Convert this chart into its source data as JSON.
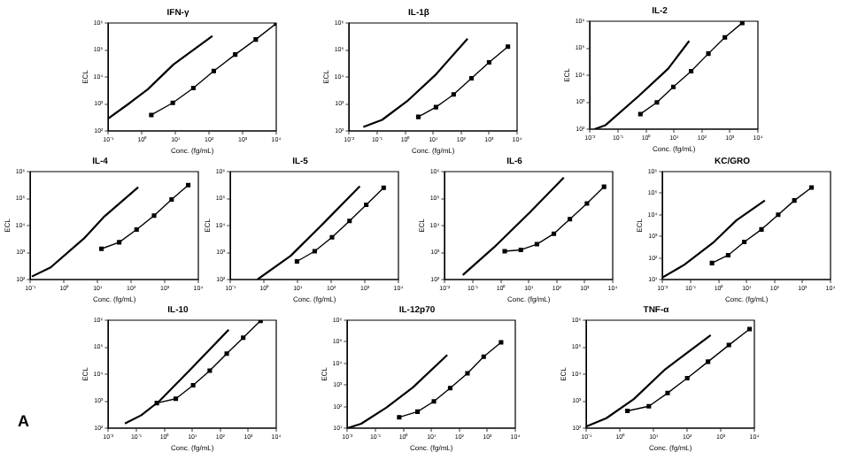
{
  "chart_data": [
    {
      "type": "line",
      "title": "IFN-γ",
      "xlabel": "Conc. (fg/mL)",
      "ylabel": "ECL",
      "log": "xy",
      "grid": false,
      "legend": false,
      "xlim": [
        0.1,
        10000
      ],
      "ylim": [
        100,
        1000000
      ],
      "xticks": [
        {
          "value": 0.1,
          "label": "10⁻¹"
        },
        {
          "value": 1,
          "label": "10⁰"
        },
        {
          "value": 10,
          "label": "10¹"
        },
        {
          "value": 100,
          "label": "10²"
        },
        {
          "value": 1000,
          "label": "10³"
        },
        {
          "value": 10000,
          "label": "10⁴"
        }
      ],
      "yticks": [
        {
          "value": 100,
          "label": "10²"
        },
        {
          "value": 1000,
          "label": "10³"
        },
        {
          "value": 10000,
          "label": "10⁴"
        },
        {
          "value": 100000,
          "label": "10⁵"
        },
        {
          "value": 1000000,
          "label": "10⁶"
        }
      ],
      "series": [
        {
          "color": "#000000",
          "marker": "square",
          "line_style": "solid",
          "x": [
            1.9,
            8.3,
            34,
            138,
            600,
            2450,
            10000
          ],
          "values": [
            390,
            1100,
            3900,
            16600,
            68000,
            245000,
            955000
          ]
        },
        {
          "color": "#000000",
          "marker": "none",
          "line_style": "solid",
          "x": [
            0.1,
            0.44,
            1.5,
            8.7,
            126
          ],
          "values": [
            290,
            1100,
            3500,
            29000,
            330000
          ]
        }
      ]
    },
    {
      "type": "line",
      "title": "IL-1β",
      "xlabel": "Conc. (fg/mL)",
      "ylabel": "ECL",
      "log": "xy",
      "grid": false,
      "legend": false,
      "xlim": [
        0.01,
        10000
      ],
      "ylim": [
        100,
        1000000
      ],
      "xticks": [
        {
          "value": 0.01,
          "label": "10⁻²"
        },
        {
          "value": 0.1,
          "label": "10⁻¹"
        },
        {
          "value": 1,
          "label": "10⁰"
        },
        {
          "value": 10,
          "label": "10¹"
        },
        {
          "value": 100,
          "label": "10²"
        },
        {
          "value": 1000,
          "label": "10³"
        },
        {
          "value": 10000,
          "label": "10⁴"
        }
      ],
      "yticks": [
        {
          "value": 100,
          "label": "10²"
        },
        {
          "value": 1000,
          "label": "10³"
        },
        {
          "value": 10000,
          "label": "10⁴"
        },
        {
          "value": 100000,
          "label": "10⁵"
        },
        {
          "value": 1000000,
          "label": "10⁶"
        }
      ],
      "series": [
        {
          "color": "#000000",
          "marker": "square",
          "line_style": "solid",
          "x": [
            2.95,
            12.6,
            54,
            234,
            1000,
            4700
          ],
          "values": [
            331,
            760,
            2240,
            8900,
            34700,
            132000
          ]
        },
        {
          "color": "#000000",
          "marker": "none",
          "line_style": "solid",
          "x": [
            0.032,
            0.15,
            1.17,
            11.7,
            170
          ],
          "values": [
            141,
            257,
            1260,
            11500,
            263000
          ]
        }
      ]
    },
    {
      "type": "line",
      "title": "IL-2",
      "xlabel": "Conc. (fg/mL)",
      "ylabel": "ECL",
      "log": "xy",
      "grid": false,
      "legend": false,
      "xlim": [
        0.01,
        10000
      ],
      "ylim": [
        100,
        1000000
      ],
      "xticks": [
        {
          "value": 0.01,
          "label": "10⁻²"
        },
        {
          "value": 0.1,
          "label": "10⁻¹"
        },
        {
          "value": 1,
          "label": "10⁰"
        },
        {
          "value": 10,
          "label": "10¹"
        },
        {
          "value": 100,
          "label": "10²"
        },
        {
          "value": 1000,
          "label": "10³"
        },
        {
          "value": 10000,
          "label": "10⁴"
        }
      ],
      "yticks": [
        {
          "value": 100,
          "label": "10²"
        },
        {
          "value": 1000,
          "label": "10³"
        },
        {
          "value": 10000,
          "label": "10⁴"
        },
        {
          "value": 100000,
          "label": "10⁵"
        },
        {
          "value": 1000000,
          "label": "10⁶"
        }
      ],
      "series": [
        {
          "color": "#000000",
          "marker": "square",
          "line_style": "solid",
          "x": [
            0.63,
            2.45,
            9.5,
            41,
            170,
            660,
            2750
          ],
          "values": [
            363,
            980,
            3700,
            14100,
            63000,
            251000,
            870000
          ]
        },
        {
          "color": "#000000",
          "marker": "none",
          "line_style": "solid",
          "x": [
            0.0145,
            0.036,
            0.55,
            6.2,
            35
          ],
          "values": [
            100,
            141,
            1700,
            17400,
            186000
          ]
        }
      ]
    },
    {
      "type": "line",
      "title": "IL-4",
      "xlabel": "Conc. (fg/mL)",
      "ylabel": "ECL",
      "log": "xy",
      "grid": false,
      "legend": false,
      "xlim": [
        0.1,
        10000
      ],
      "ylim": [
        100,
        1000000
      ],
      "xticks": [
        {
          "value": 0.1,
          "label": "10⁻¹"
        },
        {
          "value": 1,
          "label": "10⁰"
        },
        {
          "value": 10,
          "label": "10¹"
        },
        {
          "value": 100,
          "label": "10²"
        },
        {
          "value": 1000,
          "label": "10³"
        },
        {
          "value": 10000,
          "label": "10⁴"
        }
      ],
      "yticks": [
        {
          "value": 100,
          "label": "10²"
        },
        {
          "value": 1000,
          "label": "10³"
        },
        {
          "value": 10000,
          "label": "10⁴"
        },
        {
          "value": 100000,
          "label": "10⁵"
        },
        {
          "value": 1000000,
          "label": "10⁶"
        }
      ],
      "series": [
        {
          "color": "#000000",
          "marker": "square",
          "line_style": "solid",
          "x": [
            13,
            44,
            145,
            480,
            1600,
            5000
          ],
          "values": [
            1380,
            2400,
            7100,
            23400,
            93000,
            316000
          ]
        },
        {
          "color": "#000000",
          "marker": "none",
          "line_style": "solid",
          "x": [
            0.11,
            0.4,
            3.9,
            16,
            162
          ],
          "values": [
            129,
            282,
            3300,
            21900,
            263000
          ]
        }
      ]
    },
    {
      "type": "line",
      "title": "IL-5",
      "xlabel": "Conc. (fg/mL)",
      "ylabel": "ECL",
      "log": "xy",
      "grid": false,
      "legend": false,
      "xlim": [
        0.1,
        10000
      ],
      "ylim": [
        100,
        1000000
      ],
      "xticks": [
        {
          "value": 0.1,
          "label": "10⁻¹"
        },
        {
          "value": 1,
          "label": "10⁰"
        },
        {
          "value": 10,
          "label": "10¹"
        },
        {
          "value": 100,
          "label": "10²"
        },
        {
          "value": 1000,
          "label": "10³"
        },
        {
          "value": 10000,
          "label": "10⁴"
        }
      ],
      "yticks": [
        {
          "value": 100,
          "label": "10²"
        },
        {
          "value": 1000,
          "label": "10³"
        },
        {
          "value": 10000,
          "label": "10⁴"
        },
        {
          "value": 100000,
          "label": "10⁵"
        },
        {
          "value": 1000000,
          "label": "10⁶"
        }
      ],
      "series": [
        {
          "color": "#000000",
          "marker": "square",
          "line_style": "solid",
          "x": [
            9.5,
            32,
            105,
            350,
            1100,
            3630
          ],
          "values": [
            470,
            1120,
            3700,
            14800,
            59000,
            251000
          ]
        },
        {
          "color": "#000000",
          "marker": "none",
          "line_style": "solid",
          "x": [
            0.63,
            6.2,
            56,
            710
          ],
          "values": [
            100,
            760,
            11500,
            288000
          ]
        }
      ]
    },
    {
      "type": "line",
      "title": "IL-6",
      "xlabel": "Conc. (fg/mL)",
      "ylabel": "ECL",
      "log": "xy",
      "grid": false,
      "legend": false,
      "xlim": [
        0.01,
        10000
      ],
      "ylim": [
        100,
        1000000
      ],
      "xticks": [
        {
          "value": 0.01,
          "label": "10⁻²"
        },
        {
          "value": 0.1,
          "label": "10⁻¹"
        },
        {
          "value": 1,
          "label": "10⁰"
        },
        {
          "value": 10,
          "label": "10¹"
        },
        {
          "value": 100,
          "label": "10²"
        },
        {
          "value": 1000,
          "label": "10³"
        },
        {
          "value": 10000,
          "label": "10⁴"
        }
      ],
      "yticks": [
        {
          "value": 100,
          "label": "10²"
        },
        {
          "value": 1000,
          "label": "10³"
        },
        {
          "value": 10000,
          "label": "10⁴"
        },
        {
          "value": 100000,
          "label": "10⁵"
        },
        {
          "value": 1000000,
          "label": "10⁶"
        }
      ],
      "series": [
        {
          "color": "#000000",
          "marker": "square",
          "line_style": "solid",
          "x": [
            1.38,
            5.2,
            19.5,
            79,
            295,
            1200,
            4900
          ],
          "values": [
            1120,
            1260,
            2040,
            5000,
            17400,
            66000,
            275000
          ]
        },
        {
          "color": "#000000",
          "marker": "none",
          "line_style": "solid",
          "x": [
            0.044,
            0.58,
            11,
            178
          ],
          "values": [
            148,
            1580,
            31000,
            600000
          ]
        }
      ]
    },
    {
      "type": "line",
      "title": "KC/GRO",
      "xlabel": "Conc. (fg/mL)",
      "ylabel": "ECL",
      "log": "xy",
      "grid": false,
      "legend": false,
      "xlim": [
        0.01,
        10000
      ],
      "ylim": [
        10,
        1000000
      ],
      "xticks": [
        {
          "value": 0.01,
          "label": "10⁻²"
        },
        {
          "value": 0.1,
          "label": "10⁻¹"
        },
        {
          "value": 1,
          "label": "10⁰"
        },
        {
          "value": 10,
          "label": "10¹"
        },
        {
          "value": 100,
          "label": "10²"
        },
        {
          "value": 1000,
          "label": "10³"
        },
        {
          "value": 10000,
          "label": "10⁴"
        }
      ],
      "yticks": [
        {
          "value": 10,
          "label": "10¹"
        },
        {
          "value": 100,
          "label": "10²"
        },
        {
          "value": 1000,
          "label": "10³"
        },
        {
          "value": 10000,
          "label": "10⁴"
        },
        {
          "value": 100000,
          "label": "10⁵"
        },
        {
          "value": 1000000,
          "label": "10⁶"
        }
      ],
      "series": [
        {
          "color": "#000000",
          "marker": "square",
          "line_style": "solid",
          "x": [
            0.58,
            2.2,
            8.3,
            34,
            135,
            510,
            2100
          ],
          "values": [
            58,
            135,
            550,
            2100,
            10000,
            46000,
            182000
          ]
        },
        {
          "color": "#000000",
          "marker": "none",
          "line_style": "solid",
          "x": [
            0.01,
            0.059,
            0.68,
            4.3,
            45
          ],
          "values": [
            12.6,
            48,
            550,
            5500,
            46000
          ]
        }
      ]
    },
    {
      "type": "line",
      "title": "IL-10",
      "xlabel": "Conc. (fg/mL)",
      "ylabel": "ECL",
      "log": "xy",
      "grid": false,
      "legend": false,
      "xlim": [
        0.01,
        10000
      ],
      "ylim": [
        100,
        1000000
      ],
      "xticks": [
        {
          "value": 0.01,
          "label": "10⁻²"
        },
        {
          "value": 0.1,
          "label": "10⁻¹"
        },
        {
          "value": 1,
          "label": "10⁰"
        },
        {
          "value": 10,
          "label": "10¹"
        },
        {
          "value": 100,
          "label": "10²"
        },
        {
          "value": 1000,
          "label": "10³"
        },
        {
          "value": 10000,
          "label": "10⁴"
        }
      ],
      "yticks": [
        {
          "value": 100,
          "label": "10²"
        },
        {
          "value": 1000,
          "label": "10³"
        },
        {
          "value": 10000,
          "label": "10⁴"
        },
        {
          "value": 100000,
          "label": "10⁵"
        },
        {
          "value": 1000000,
          "label": "10⁶"
        }
      ],
      "annotations": [
        "A"
      ],
      "series": [
        {
          "color": "#000000",
          "marker": "square",
          "line_style": "solid",
          "x": [
            0.54,
            2.57,
            10.7,
            42,
            170,
            660,
            2750
          ],
          "values": [
            850,
            1230,
            3900,
            13500,
            57500,
            224000,
            955000
          ]
        },
        {
          "color": "#000000",
          "marker": "none",
          "line_style": "solid",
          "x": [
            0.039,
            0.15,
            0.66,
            8.5,
            200
          ],
          "values": [
            148,
            302,
            1000,
            14800,
            447000
          ]
        }
      ]
    },
    {
      "type": "line",
      "title": "IL-12p70",
      "xlabel": "Conc. (fg/mL)",
      "ylabel": "ECL",
      "log": "xy",
      "grid": false,
      "legend": false,
      "xlim": [
        0.01,
        10000
      ],
      "ylim": [
        10,
        1000000
      ],
      "xticks": [
        {
          "value": 0.01,
          "label": "10⁻²"
        },
        {
          "value": 0.1,
          "label": "10⁻¹"
        },
        {
          "value": 1,
          "label": "10⁰"
        },
        {
          "value": 10,
          "label": "10¹"
        },
        {
          "value": 100,
          "label": "10²"
        },
        {
          "value": 1000,
          "label": "10³"
        },
        {
          "value": 10000,
          "label": "10⁴"
        }
      ],
      "yticks": [
        {
          "value": 10,
          "label": "10¹"
        },
        {
          "value": 100,
          "label": "10²"
        },
        {
          "value": 1000,
          "label": "10³"
        },
        {
          "value": 10000,
          "label": "10⁴"
        },
        {
          "value": 100000,
          "label": "10⁵"
        },
        {
          "value": 1000000,
          "label": "10⁶"
        }
      ],
      "series": [
        {
          "color": "#000000",
          "marker": "square",
          "line_style": "solid",
          "x": [
            0.71,
            3.2,
            12.3,
            47,
            195,
            740,
            3100
          ],
          "values": [
            32,
            58,
            174,
            720,
            3500,
            20400,
            95000
          ]
        },
        {
          "color": "#000000",
          "marker": "none",
          "line_style": "solid",
          "x": [
            0.01,
            0.031,
            0.25,
            2.2,
            37
          ],
          "values": [
            10,
            16,
            91,
            780,
            24500
          ]
        }
      ]
    },
    {
      "type": "line",
      "title": "TNF-α",
      "xlabel": "Conc. (fg/mL)",
      "ylabel": "ECL",
      "log": "xy",
      "grid": false,
      "legend": false,
      "xlim": [
        0.1,
        10000
      ],
      "ylim": [
        100,
        1000000
      ],
      "xticks": [
        {
          "value": 0.1,
          "label": "10⁻¹"
        },
        {
          "value": 1,
          "label": "10⁰"
        },
        {
          "value": 10,
          "label": "10¹"
        },
        {
          "value": 100,
          "label": "10²"
        },
        {
          "value": 1000,
          "label": "10³"
        },
        {
          "value": 10000,
          "label": "10⁴"
        }
      ],
      "yticks": [
        {
          "value": 100,
          "label": "10²"
        },
        {
          "value": 1000,
          "label": "10³"
        },
        {
          "value": 10000,
          "label": "10⁴"
        },
        {
          "value": 100000,
          "label": "10⁵"
        },
        {
          "value": 1000000,
          "label": "10⁶"
        }
      ],
      "series": [
        {
          "color": "#000000",
          "marker": "square",
          "line_style": "solid",
          "x": [
            1.66,
            7.2,
            26,
            100,
            417,
            1740,
            7200
          ],
          "values": [
            437,
            650,
            2000,
            7100,
            29000,
            120000,
            470000
          ]
        },
        {
          "color": "#000000",
          "marker": "none",
          "line_style": "solid",
          "x": [
            0.1,
            0.39,
            2.57,
            22,
            500
          ],
          "values": [
            117,
            234,
            1200,
            15100,
            282000
          ]
        }
      ]
    }
  ]
}
